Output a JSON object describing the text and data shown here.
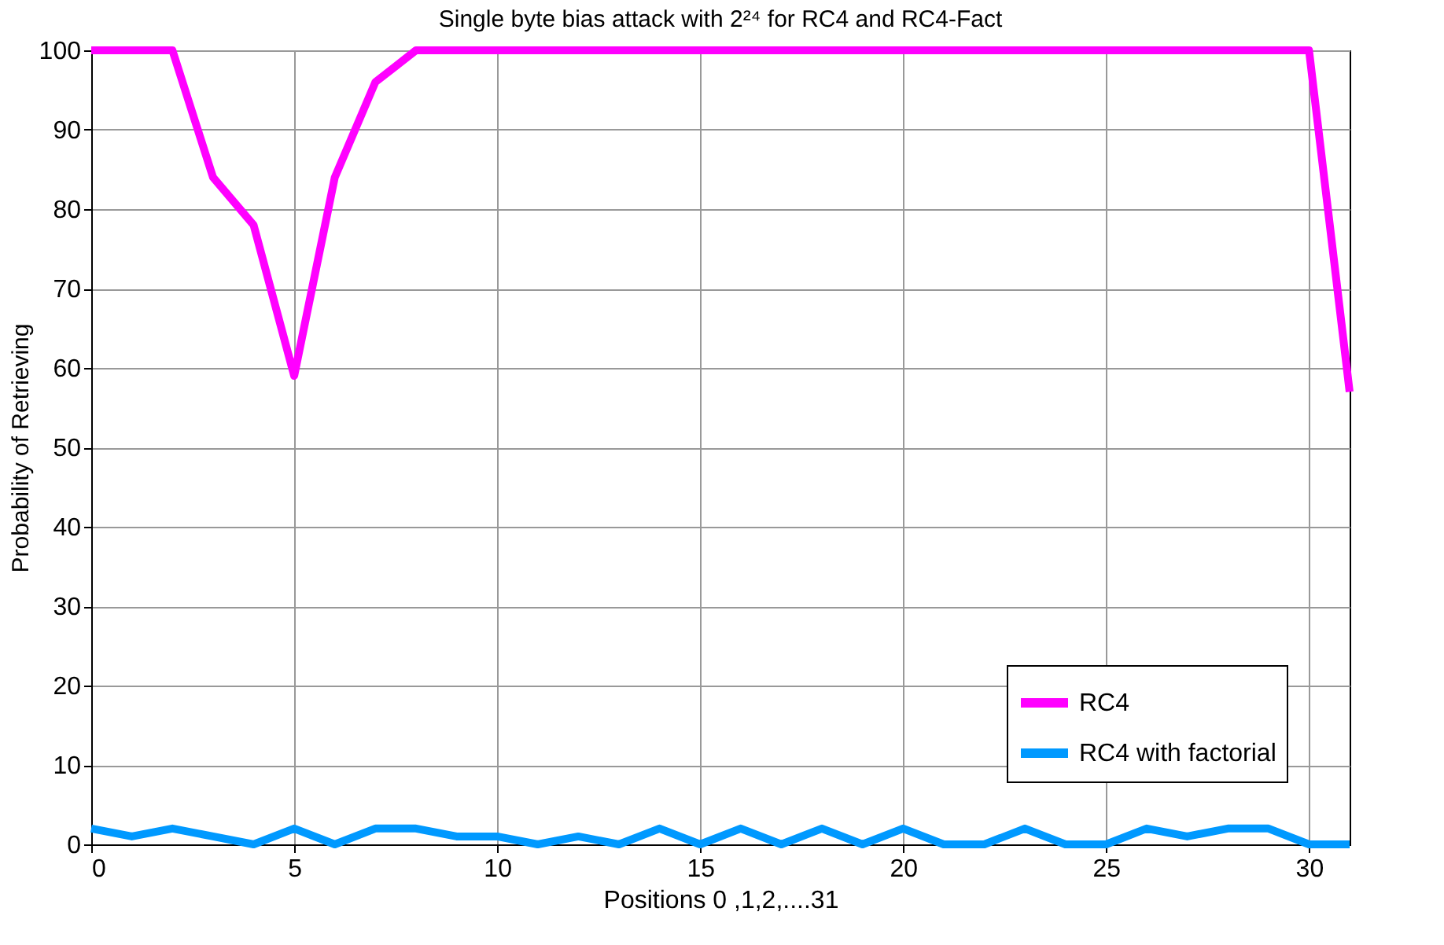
{
  "chart_data": {
    "type": "line",
    "title": "Single byte bias attack with 2²⁴ for RC4 and RC4-Fact",
    "xlabel": "Positions 0 ,1,2,....31",
    "ylabel": "Probability of Retrieving",
    "x": [
      0,
      1,
      2,
      3,
      4,
      5,
      6,
      7,
      8,
      9,
      10,
      11,
      12,
      13,
      14,
      15,
      16,
      17,
      18,
      19,
      20,
      21,
      22,
      23,
      24,
      25,
      26,
      27,
      28,
      29,
      30,
      31
    ],
    "series": [
      {
        "name": "RC4",
        "color": "#ff00ff",
        "values": [
          100,
          100,
          100,
          84,
          78,
          59,
          84,
          96,
          100,
          100,
          100,
          100,
          100,
          100,
          100,
          100,
          100,
          100,
          100,
          100,
          100,
          100,
          100,
          100,
          100,
          100,
          100,
          100,
          100,
          100,
          100,
          57
        ]
      },
      {
        "name": "RC4 with factorial",
        "color": "#0099ff",
        "values": [
          2,
          1,
          2,
          1,
          0,
          2,
          0,
          2,
          2,
          1,
          1,
          0,
          1,
          0,
          2,
          0,
          2,
          0,
          2,
          0,
          2,
          0,
          0,
          2,
          0,
          0,
          2,
          1,
          2,
          2,
          0,
          0
        ]
      }
    ],
    "xlim": [
      0,
      31
    ],
    "ylim": [
      0,
      100
    ],
    "xticks": [
      0,
      5,
      10,
      15,
      20,
      25,
      30
    ],
    "yticks": [
      0,
      10,
      20,
      30,
      40,
      50,
      60,
      70,
      80,
      90,
      100
    ],
    "grid": true,
    "legend": "bottom right",
    "line_style": "solid",
    "marker": "none"
  }
}
